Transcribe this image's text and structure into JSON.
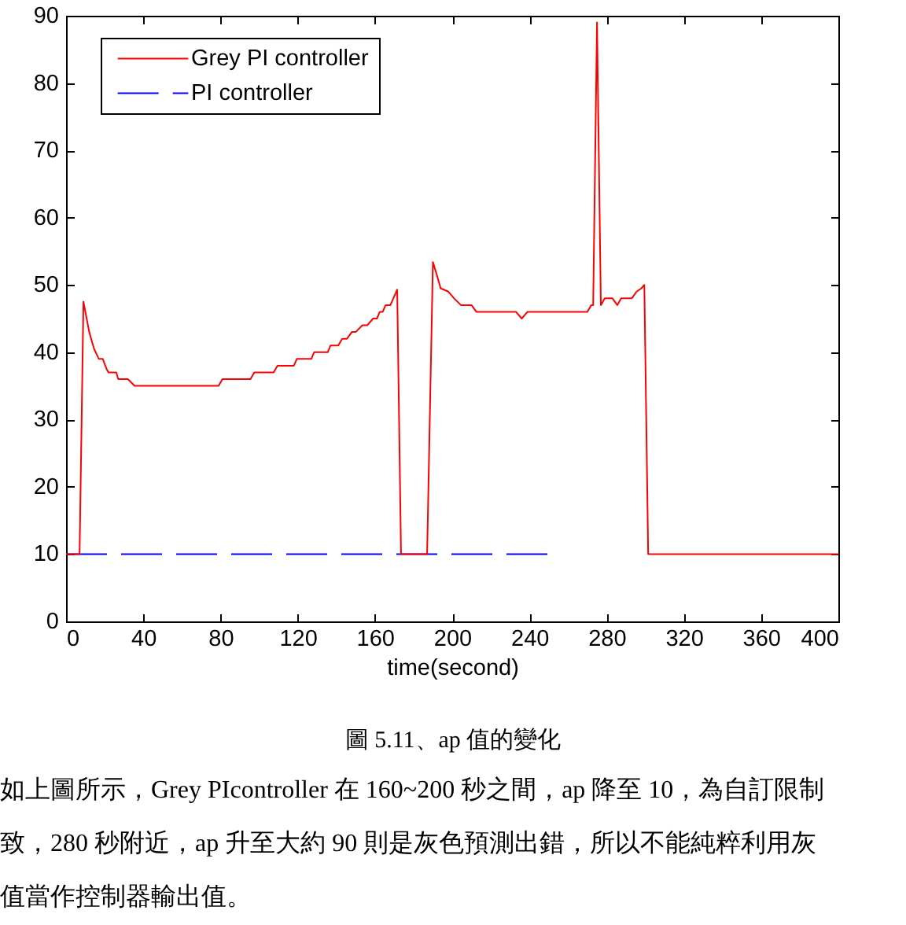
{
  "chart_data": {
    "type": "line",
    "xlabel": "time(second)",
    "annotations": [
      "圖 5.11、ap 值的變化",
      "如上圖所示，Grey PIcontroller 在 160~200 秒之間，ap 降至 10，為自訂限制",
      "致，280 秒附近，ap 升至大約 90 則是灰色預測出錯，所以不能純粹利用灰",
      "值當作控制器輸出值。"
    ],
    "series": [
      {
        "name": "Grey PI controller",
        "color": "#ff0000",
        "line_style": "solid",
        "x": [
          0,
          7,
          9,
          12,
          14.5,
          17,
          19,
          21,
          22,
          26,
          27,
          32,
          35.5,
          79,
          81,
          95.5,
          97.5,
          107.5,
          109.5,
          118,
          119.5,
          127,
          128.5,
          135.5,
          137,
          141,
          143,
          145.5,
          148,
          150,
          153.5,
          156,
          159,
          161,
          162.5,
          164,
          165.5,
          168,
          169.5,
          171.5,
          173.5,
          187,
          190,
          192,
          194,
          198,
          201,
          204.5,
          210,
          212.5,
          233,
          236,
          239,
          270,
          272,
          273,
          275,
          277,
          279,
          283,
          285.5,
          287.5,
          293,
          295.5,
          298,
          299.5,
          301.5,
          400
        ],
        "values": [
          10,
          10,
          47.5,
          43,
          40.5,
          39,
          39,
          37.5,
          37,
          37,
          36,
          36,
          35,
          35,
          36,
          36,
          37,
          37,
          38,
          38,
          39,
          39,
          40,
          40,
          41,
          41,
          42,
          42,
          43,
          43,
          44,
          44,
          45,
          45,
          46,
          46,
          47,
          47,
          48,
          49.3,
          10,
          10,
          53.4,
          51.5,
          49.5,
          49,
          48,
          47,
          47,
          46,
          46,
          45,
          46,
          46,
          47,
          47,
          89,
          47,
          48,
          48,
          47,
          48,
          48,
          49,
          49.5,
          50,
          10,
          10
        ]
      },
      {
        "name": "PI controller",
        "color": "#0000ff",
        "line_style": "dashed",
        "x": [
          0,
          250
        ],
        "values": [
          10,
          10
        ]
      }
    ],
    "xlim": [
      0,
      400
    ],
    "xticks": [
      0,
      40,
      80,
      120,
      160,
      200,
      240,
      280,
      320,
      360,
      400
    ],
    "ylim": [
      0,
      90
    ],
    "yticks": [
      0,
      10,
      20,
      30,
      40,
      50,
      60,
      70,
      80,
      90
    ],
    "grid": false,
    "legend": "top left"
  }
}
